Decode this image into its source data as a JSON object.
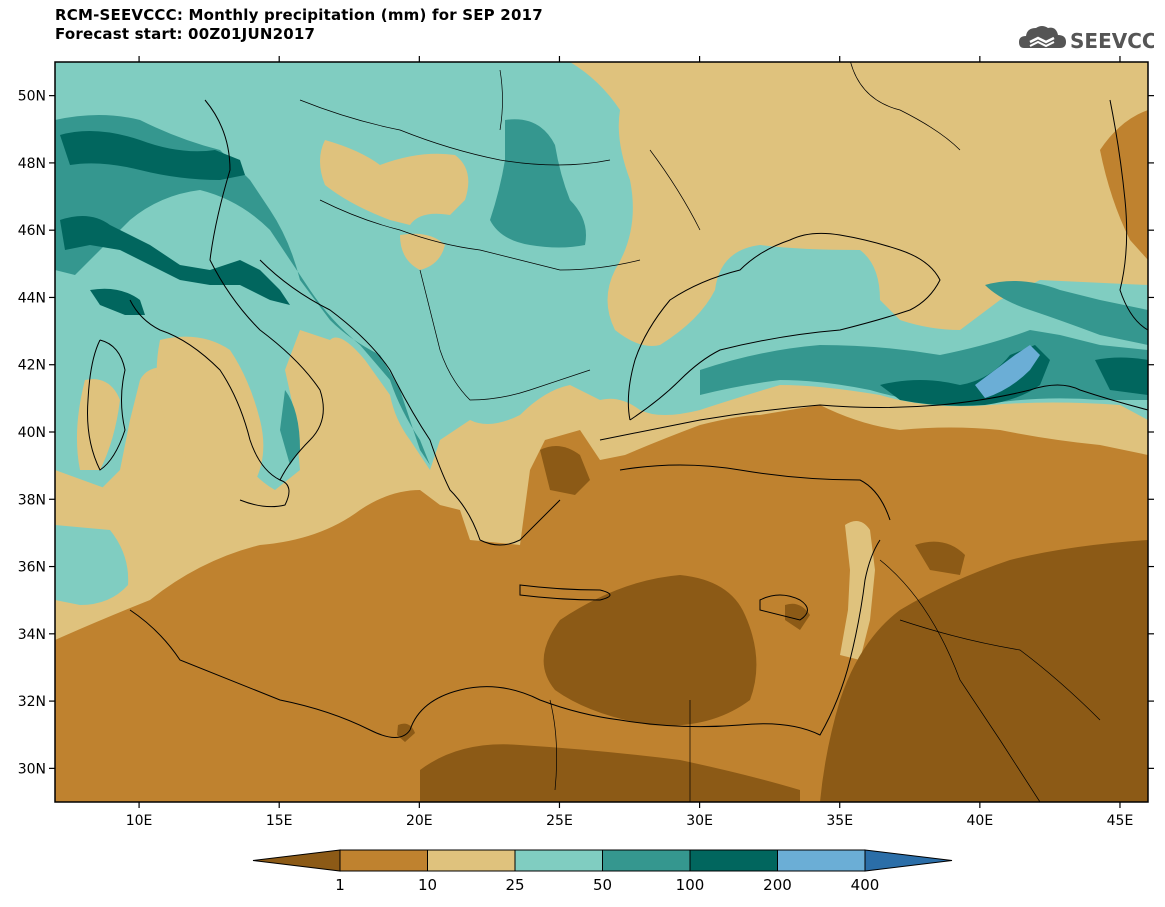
{
  "header": {
    "title": "RCM-SEEVCCC: Monthly precipitation (mm) for SEP 2017",
    "subtitle": "Forecast start: 00Z01JUN2017"
  },
  "logo": {
    "text": "SEEVCCC",
    "icon": "cloud-icon",
    "color": "#555555"
  },
  "map": {
    "lon_range": [
      7,
      46
    ],
    "lat_range": [
      29,
      51
    ],
    "lat_ticks": [
      {
        "value": 30,
        "label": "30N"
      },
      {
        "value": 32,
        "label": "32N"
      },
      {
        "value": 34,
        "label": "34N"
      },
      {
        "value": 36,
        "label": "36N"
      },
      {
        "value": 38,
        "label": "38N"
      },
      {
        "value": 40,
        "label": "40N"
      },
      {
        "value": 42,
        "label": "42N"
      },
      {
        "value": 44,
        "label": "44N"
      },
      {
        "value": 46,
        "label": "46N"
      },
      {
        "value": 48,
        "label": "48N"
      },
      {
        "value": 50,
        "label": "50N"
      }
    ],
    "lon_ticks": [
      {
        "value": 10,
        "label": "10E"
      },
      {
        "value": 15,
        "label": "15E"
      },
      {
        "value": 20,
        "label": "20E"
      },
      {
        "value": 25,
        "label": "25E"
      },
      {
        "value": 30,
        "label": "30E"
      },
      {
        "value": 35,
        "label": "35E"
      },
      {
        "value": 40,
        "label": "40E"
      },
      {
        "value": 45,
        "label": "45E"
      }
    ]
  },
  "colorbar": {
    "levels": [
      "1",
      "10",
      "25",
      "50",
      "100",
      "200",
      "400"
    ],
    "colors": [
      "#8c5a16",
      "#bf822f",
      "#dfc27d",
      "#80cdc1",
      "#35978f",
      "#01665e",
      "#6baed6",
      "#2b6ea8"
    ]
  }
}
